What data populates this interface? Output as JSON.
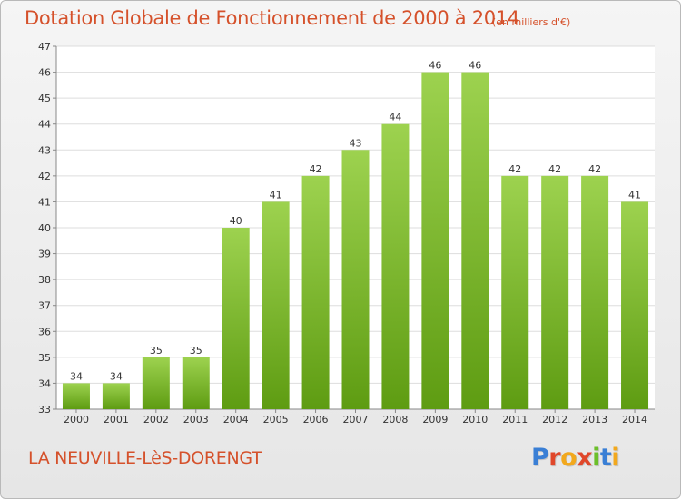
{
  "header": {
    "title": "Dotation Globale de Fonctionnement de 2000 à 2014",
    "unit": "(en milliers d'€)"
  },
  "footer": {
    "commune": "LA NEUVILLE-LèS-DORENGT",
    "logo": "Proxiti"
  },
  "colors": {
    "accent_text": "#d5512b",
    "bar_light": "#9dd24f",
    "bar_dark": "#5e9c12",
    "grid": "#dddddd",
    "logo_letters": [
      "#3a7fd5",
      "#e0472a",
      "#f2a81d",
      "#e0472a",
      "#6cbf2a",
      "#3a7fd5",
      "#f2a81d"
    ]
  },
  "chart_data": {
    "type": "bar",
    "categories": [
      "2000",
      "2001",
      "2002",
      "2003",
      "2004",
      "2005",
      "2006",
      "2007",
      "2008",
      "2009",
      "2010",
      "2011",
      "2012",
      "2013",
      "2014"
    ],
    "values": [
      34,
      34,
      35,
      35,
      40,
      41,
      42,
      43,
      44,
      46,
      46,
      42,
      42,
      42,
      41
    ],
    "title": "Dotation Globale de Fonctionnement de 2000 à 2014",
    "ylim": [
      33,
      47
    ],
    "yticks": [
      33,
      34,
      35,
      36,
      37,
      38,
      39,
      40,
      41,
      42,
      43,
      44,
      45,
      46,
      47
    ],
    "grid": true,
    "data_labels": true
  }
}
